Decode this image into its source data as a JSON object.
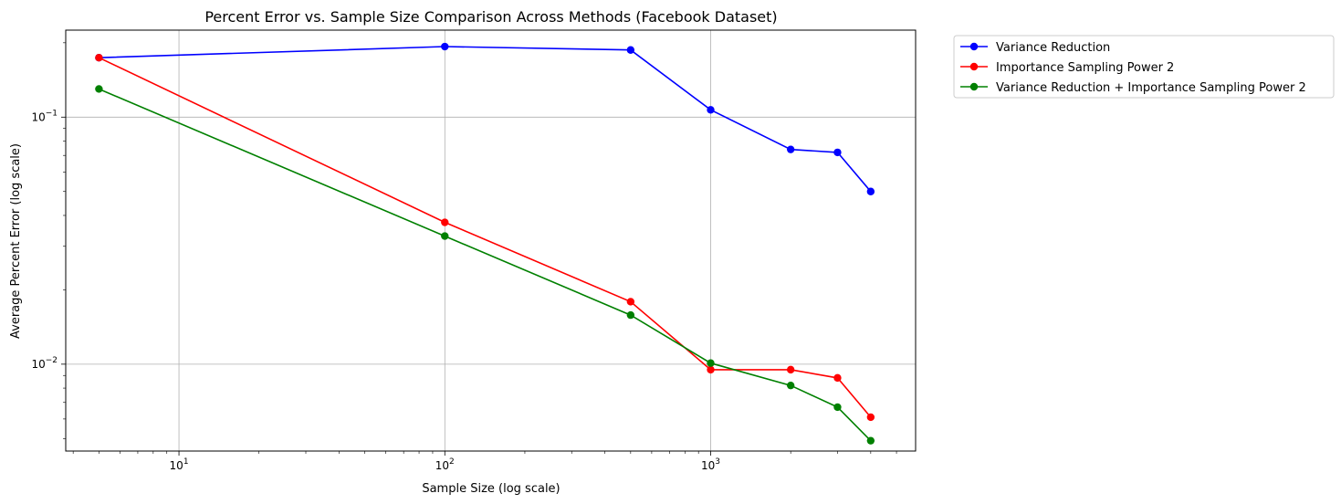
{
  "chart_data": {
    "type": "line",
    "title": "Percent Error vs. Sample Size Comparison Across Methods (Facebook Dataset)",
    "xlabel": "Sample Size (log scale)",
    "ylabel": "Average Percent Error (log scale)",
    "xscale": "log",
    "yscale": "log",
    "xlim": [
      3.75,
      5900
    ],
    "ylim": [
      0.00445,
      0.225
    ],
    "grid": true,
    "legend_position": "outside-top-right",
    "x_ticks": [
      {
        "value": 10,
        "base": "10",
        "exp": "1"
      },
      {
        "value": 100,
        "base": "10",
        "exp": "2"
      },
      {
        "value": 1000,
        "base": "10",
        "exp": "3"
      }
    ],
    "y_ticks": [
      {
        "value": 0.01,
        "base": "10",
        "exp": "−2"
      },
      {
        "value": 0.1,
        "base": "10",
        "exp": "−1"
      }
    ],
    "x": [
      5,
      100,
      500,
      1000,
      2000,
      3000,
      4000
    ],
    "series": [
      {
        "name": "Variance Reduction",
        "color": "#0000ff",
        "values": [
          0.174,
          0.193,
          0.187,
          0.107,
          0.074,
          0.072,
          0.05
        ]
      },
      {
        "name": "Importance Sampling Power 2",
        "color": "#ff0000",
        "values": [
          0.174,
          0.0375,
          0.0179,
          0.0095,
          0.0095,
          0.0088,
          0.0061
        ]
      },
      {
        "name": "Variance Reduction + Importance Sampling Power 2",
        "color": "#008000",
        "values": [
          0.13,
          0.033,
          0.0158,
          0.0101,
          0.0082,
          0.0067,
          0.0049
        ]
      }
    ]
  }
}
